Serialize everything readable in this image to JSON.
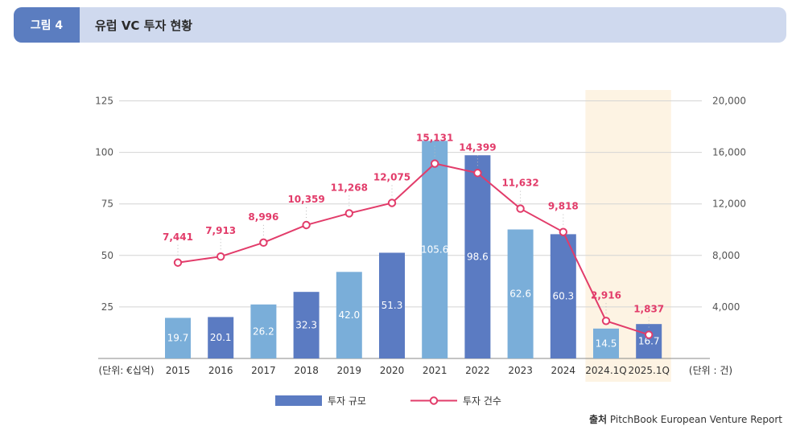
{
  "header": {
    "figure_tag": "그림 4",
    "title": "유럽 VC 투자 현황"
  },
  "source": {
    "label": "출처",
    "text": "PitchBook European Venture Report"
  },
  "colors": {
    "bar_dark": "#5b7bc2",
    "bar_light": "#7aaed9",
    "line": "#e23c6a",
    "highlight": "#fdf3e3"
  },
  "chart_data": {
    "type": "bar",
    "categories": [
      "2015",
      "2016",
      "2017",
      "2018",
      "2019",
      "2020",
      "2021",
      "2022",
      "2023",
      "2024",
      "2024.1Q",
      "2025.1Q"
    ],
    "bar_shades": [
      "light",
      "dark",
      "light",
      "dark",
      "light",
      "dark",
      "light",
      "dark",
      "light",
      "dark",
      "light",
      "dark"
    ],
    "series": [
      {
        "name": "투자 규모",
        "type": "bar",
        "axis": "left",
        "values": [
          19.7,
          20.1,
          26.2,
          32.3,
          42.0,
          51.3,
          105.6,
          98.6,
          62.6,
          60.3,
          14.5,
          16.7
        ],
        "labels": [
          "19.7",
          "20.1",
          "26.2",
          "32.3",
          "42.0",
          "51.3",
          "105.6",
          "98.6",
          "62.6",
          "60.3",
          "14.5",
          "16.7"
        ]
      },
      {
        "name": "투자 건수",
        "type": "line",
        "axis": "right",
        "values": [
          7441,
          7913,
          8996,
          10359,
          11268,
          12075,
          15131,
          14399,
          11632,
          9818,
          2916,
          1837
        ],
        "labels": [
          "7,441",
          "7,913",
          "8,996",
          "10,359",
          "11,268",
          "12,075",
          "15,131",
          "14,399",
          "11,632",
          "9,818",
          "2,916",
          "1,837"
        ]
      }
    ],
    "left_axis": {
      "ticks": [
        "25",
        "50",
        "75",
        "100",
        "125"
      ],
      "unit_label": "(단위: €십억)",
      "ylim": [
        0,
        125
      ]
    },
    "right_axis": {
      "ticks": [
        "4,000",
        "8,000",
        "12,000",
        "16,000",
        "20,000"
      ],
      "unit_label": "(단위 : 건)",
      "ylim": [
        0,
        20000
      ]
    },
    "highlighted_categories": [
      "2024.1Q",
      "2025.1Q"
    ],
    "legend_position": "bottom",
    "grid": true
  }
}
